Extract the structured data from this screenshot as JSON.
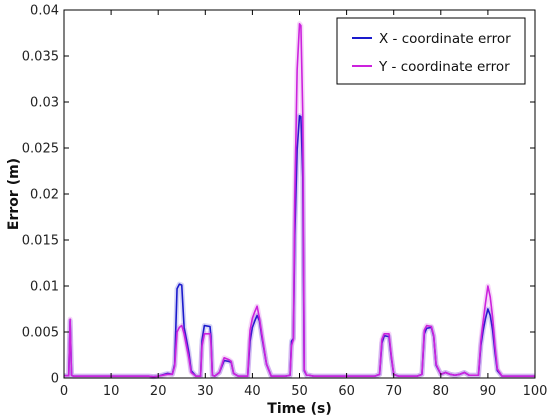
{
  "chart_data": {
    "type": "line",
    "xlabel": "Time (s)",
    "ylabel": "Error (m)",
    "xlim": [
      0,
      100
    ],
    "ylim": [
      0,
      0.04
    ],
    "x_ticks": [
      0,
      10,
      20,
      30,
      40,
      50,
      60,
      70,
      80,
      90,
      100
    ],
    "y_ticks": [
      0,
      0.005,
      0.01,
      0.015,
      0.02,
      0.025,
      0.03,
      0.035,
      0.04
    ],
    "x_tick_labels": [
      "0",
      "10",
      "20",
      "30",
      "40",
      "50",
      "60",
      "70",
      "80",
      "90",
      "100"
    ],
    "y_tick_labels": [
      "0",
      "0.005",
      "0.01",
      "0.015",
      "0.02",
      "0.025",
      "0.03",
      "0.035",
      "0.04"
    ],
    "grid": false,
    "legend_position": "top-right",
    "series": [
      {
        "name": "X - coordinate error",
        "color": "#1a1acc",
        "x": [
          0,
          1.0,
          1.3,
          1.6,
          2.0,
          16.0,
          18.0,
          19.0,
          20.0,
          22.0,
          23.0,
          23.5,
          24.0,
          24.5,
          25.0,
          25.5,
          26.0,
          26.5,
          27.0,
          28.0,
          29.0,
          29.3,
          29.8,
          31.0,
          31.2,
          31.5,
          32.0,
          33.0,
          34.0,
          35.0,
          35.5,
          36.0,
          37.0,
          38.0,
          39.0,
          39.5,
          40.0,
          40.5,
          41.0,
          41.5,
          42.0,
          43.0,
          44.0,
          47.0,
          48.0,
          48.3,
          48.7,
          49.0,
          49.5,
          50.0,
          50.3,
          50.7,
          51.0,
          51.5,
          52.0,
          53.0,
          60.0,
          66.0,
          67.0,
          67.5,
          68.0,
          69.0,
          69.5,
          70.0,
          71.0,
          75.0,
          76.0,
          76.5,
          77.0,
          78.0,
          78.5,
          79.0,
          80.0,
          81.0,
          82.0,
          83.0,
          84.0,
          85.0,
          86.0,
          88.0,
          88.5,
          89.0,
          89.5,
          90.0,
          90.5,
          91.0,
          91.5,
          92.0,
          93.0,
          100.0
        ],
        "values": [
          0.00025,
          0.00025,
          0.0062,
          0.0003,
          0.0002,
          0.0002,
          0.0002,
          0.00015,
          0.0002,
          0.0005,
          0.0004,
          0.0015,
          0.0097,
          0.0102,
          0.0101,
          0.0055,
          0.0042,
          0.0028,
          0.0008,
          0.0002,
          0.0002,
          0.0041,
          0.0057,
          0.0056,
          0.0045,
          0.0003,
          0.0002,
          0.0006,
          0.0019,
          0.0018,
          0.0017,
          0.0005,
          0.0002,
          0.0002,
          0.0002,
          0.004,
          0.0055,
          0.0062,
          0.0068,
          0.0062,
          0.0045,
          0.0015,
          0.0002,
          0.0002,
          0.0003,
          0.004,
          0.0043,
          0.0155,
          0.0248,
          0.0285,
          0.0284,
          0.0218,
          0.0008,
          0.0003,
          0.0003,
          0.0002,
          0.0002,
          0.0002,
          0.0004,
          0.0038,
          0.0046,
          0.0045,
          0.0022,
          0.0004,
          0.0002,
          0.0002,
          0.0004,
          0.0048,
          0.0054,
          0.0055,
          0.0045,
          0.0014,
          0.0004,
          0.0006,
          0.0004,
          0.0003,
          0.0004,
          0.0006,
          0.0003,
          0.0003,
          0.0035,
          0.0052,
          0.0065,
          0.0075,
          0.0068,
          0.0052,
          0.0028,
          0.0008,
          0.0002,
          0.0002
        ]
      },
      {
        "name": "Y - coordinate error",
        "color": "#cc22dd",
        "x": [
          0,
          1.0,
          1.3,
          1.6,
          2.0,
          16.0,
          18.0,
          19.0,
          20.0,
          22.0,
          23.0,
          23.5,
          24.0,
          24.5,
          25.0,
          25.5,
          26.0,
          26.5,
          27.0,
          28.0,
          29.0,
          29.3,
          29.8,
          31.0,
          31.2,
          31.5,
          32.0,
          33.0,
          34.0,
          35.0,
          35.5,
          36.0,
          37.0,
          38.0,
          39.0,
          39.5,
          40.0,
          40.5,
          41.0,
          41.5,
          42.0,
          43.0,
          44.0,
          47.0,
          48.0,
          48.3,
          48.7,
          49.0,
          49.5,
          50.0,
          50.3,
          50.7,
          51.0,
          51.5,
          52.0,
          53.0,
          60.0,
          66.0,
          67.0,
          67.5,
          68.0,
          69.0,
          69.5,
          70.0,
          71.0,
          75.0,
          76.0,
          76.5,
          77.0,
          78.0,
          78.5,
          79.0,
          80.0,
          81.0,
          82.0,
          83.0,
          84.0,
          85.0,
          86.0,
          88.0,
          88.5,
          89.0,
          89.5,
          90.0,
          90.5,
          91.0,
          91.5,
          92.0,
          93.0,
          100.0
        ],
        "values": [
          0.00025,
          0.00025,
          0.0064,
          0.0003,
          0.0002,
          0.0002,
          0.0002,
          0.00015,
          0.0002,
          0.0004,
          0.0004,
          0.0013,
          0.005,
          0.0055,
          0.0057,
          0.0048,
          0.0035,
          0.0022,
          0.0006,
          0.0002,
          0.0002,
          0.0035,
          0.0048,
          0.0048,
          0.0038,
          0.0003,
          0.0002,
          0.0006,
          0.0022,
          0.002,
          0.0018,
          0.0005,
          0.0002,
          0.0002,
          0.0002,
          0.0052,
          0.0065,
          0.0072,
          0.0078,
          0.0065,
          0.0048,
          0.0015,
          0.0002,
          0.0002,
          0.0003,
          0.0035,
          0.0042,
          0.0195,
          0.0335,
          0.0385,
          0.0383,
          0.0285,
          0.0009,
          0.0003,
          0.0003,
          0.0002,
          0.0002,
          0.0002,
          0.0004,
          0.0042,
          0.0048,
          0.0048,
          0.0024,
          0.0004,
          0.0002,
          0.0002,
          0.0004,
          0.0052,
          0.0057,
          0.0056,
          0.0046,
          0.0015,
          0.0004,
          0.0006,
          0.0004,
          0.0003,
          0.0004,
          0.0006,
          0.0003,
          0.0003,
          0.004,
          0.0062,
          0.0082,
          0.01,
          0.0088,
          0.0066,
          0.0035,
          0.001,
          0.0002,
          0.0002
        ]
      }
    ]
  }
}
